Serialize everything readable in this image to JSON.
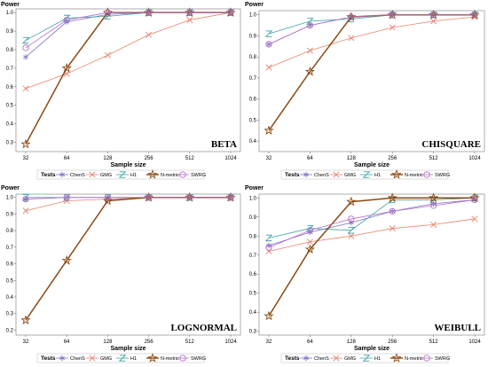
{
  "chart_data": [
    {
      "type": "line",
      "panel_name": "BETA",
      "ylabel": "Power",
      "xlabel": "Sample size",
      "categories": [
        "32",
        "64",
        "128",
        "256",
        "512",
        "1024"
      ],
      "yticks": [
        "0.3",
        "0.4",
        "0.5",
        "0.6",
        "0.7",
        "0.8",
        "0.9",
        "1.0"
      ],
      "ylim": [
        0.25,
        1.02
      ],
      "legend_title": "Tests",
      "series": [
        {
          "name": "ChenS",
          "color": "#8073c4",
          "marker": "star6",
          "values": [
            0.76,
            0.95,
            0.99,
            1.0,
            1.0,
            1.0
          ]
        },
        {
          "name": "GMG",
          "color": "#e6836f",
          "marker": "x",
          "values": [
            0.59,
            0.67,
            0.77,
            0.88,
            0.96,
            1.0
          ]
        },
        {
          "name": "H1",
          "color": "#3fa1a6",
          "marker": "z",
          "values": [
            0.85,
            0.97,
            0.98,
            1.0,
            1.0,
            1.0
          ]
        },
        {
          "name": "N-metric",
          "color": "#8b4a14",
          "marker": "star5",
          "values": [
            0.29,
            0.7,
            1.0,
            1.0,
            1.0,
            1.0
          ]
        },
        {
          "name": "SWRG",
          "color": "#b86fc9",
          "marker": "circle",
          "values": [
            0.81,
            0.96,
            1.0,
            1.0,
            1.0,
            1.0
          ]
        }
      ]
    },
    {
      "type": "line",
      "panel_name": "CHISQUARE",
      "ylabel": "Power",
      "xlabel": "Sample size",
      "categories": [
        "32",
        "64",
        "128",
        "256",
        "512",
        "1024"
      ],
      "yticks": [
        "0.4",
        "0.5",
        "0.6",
        "0.7",
        "0.8",
        "0.9",
        "1.0"
      ],
      "ylim": [
        0.35,
        1.02
      ],
      "legend_title": "Tests",
      "series": [
        {
          "name": "ChenS",
          "color": "#8073c4",
          "marker": "star6",
          "values": [
            0.86,
            0.95,
            0.99,
            1.0,
            1.0,
            1.0
          ]
        },
        {
          "name": "GMG",
          "color": "#e6836f",
          "marker": "x",
          "values": [
            0.75,
            0.83,
            0.89,
            0.94,
            0.97,
            0.99
          ]
        },
        {
          "name": "H1",
          "color": "#3fa1a6",
          "marker": "z",
          "values": [
            0.91,
            0.97,
            0.98,
            1.0,
            1.0,
            1.0
          ]
        },
        {
          "name": "N-metric",
          "color": "#8b4a14",
          "marker": "star5",
          "values": [
            0.45,
            0.73,
            0.99,
            1.0,
            1.0,
            1.0
          ]
        },
        {
          "name": "SWRG",
          "color": "#b86fc9",
          "marker": "circle",
          "values": [
            0.86,
            0.95,
            0.99,
            1.0,
            1.0,
            1.0
          ]
        }
      ]
    },
    {
      "type": "line",
      "panel_name": "LOGNORMAL",
      "ylabel": "Power",
      "xlabel": "Sample size",
      "categories": [
        "32",
        "64",
        "128",
        "256",
        "512",
        "1024"
      ],
      "yticks": [
        "0.2",
        "0.3",
        "0.4",
        "0.5",
        "0.6",
        "0.7",
        "0.8",
        "0.9",
        "1.0"
      ],
      "ylim": [
        0.17,
        1.02
      ],
      "legend_title": "Tests",
      "series": [
        {
          "name": "ChenS",
          "color": "#8073c4",
          "marker": "star6",
          "values": [
            0.99,
            1.0,
            1.0,
            1.0,
            1.0,
            1.0
          ]
        },
        {
          "name": "GMG",
          "color": "#e6836f",
          "marker": "x",
          "values": [
            0.92,
            0.98,
            0.99,
            1.0,
            1.0,
            1.0
          ]
        },
        {
          "name": "H1",
          "color": "#3fa1a6",
          "marker": "z",
          "values": [
            1.0,
            1.0,
            1.0,
            1.0,
            1.0,
            1.0
          ]
        },
        {
          "name": "N-metric",
          "color": "#8b4a14",
          "marker": "star5",
          "values": [
            0.26,
            0.62,
            0.98,
            1.0,
            1.0,
            1.0
          ]
        },
        {
          "name": "SWRG",
          "color": "#b86fc9",
          "marker": "circle",
          "values": [
            0.99,
            1.0,
            1.0,
            1.0,
            1.0,
            1.0
          ]
        }
      ]
    },
    {
      "type": "line",
      "panel_name": "WEIBULL",
      "ylabel": "Power",
      "xlabel": "Sample size",
      "categories": [
        "32",
        "64",
        "128",
        "256",
        "512",
        "1024"
      ],
      "yticks": [
        "0.3",
        "0.4",
        "0.5",
        "0.6",
        "0.7",
        "0.8",
        "0.9",
        "1.0"
      ],
      "ylim": [
        0.28,
        1.02
      ],
      "legend_title": "Tests",
      "series": [
        {
          "name": "ChenS",
          "color": "#8073c4",
          "marker": "star6",
          "values": [
            0.75,
            0.82,
            0.87,
            0.93,
            0.97,
            0.99
          ]
        },
        {
          "name": "GMG",
          "color": "#e6836f",
          "marker": "x",
          "values": [
            0.72,
            0.77,
            0.8,
            0.84,
            0.86,
            0.89
          ]
        },
        {
          "name": "H1",
          "color": "#3fa1a6",
          "marker": "z",
          "values": [
            0.79,
            0.84,
            0.83,
            0.99,
            0.99,
            1.0
          ]
        },
        {
          "name": "N-metric",
          "color": "#8b4a14",
          "marker": "star5",
          "values": [
            0.38,
            0.73,
            0.98,
            1.0,
            1.0,
            1.0
          ]
        },
        {
          "name": "SWRG",
          "color": "#b86fc9",
          "marker": "circle",
          "values": [
            0.74,
            0.83,
            0.89,
            0.93,
            0.96,
            0.99
          ]
        }
      ]
    }
  ]
}
